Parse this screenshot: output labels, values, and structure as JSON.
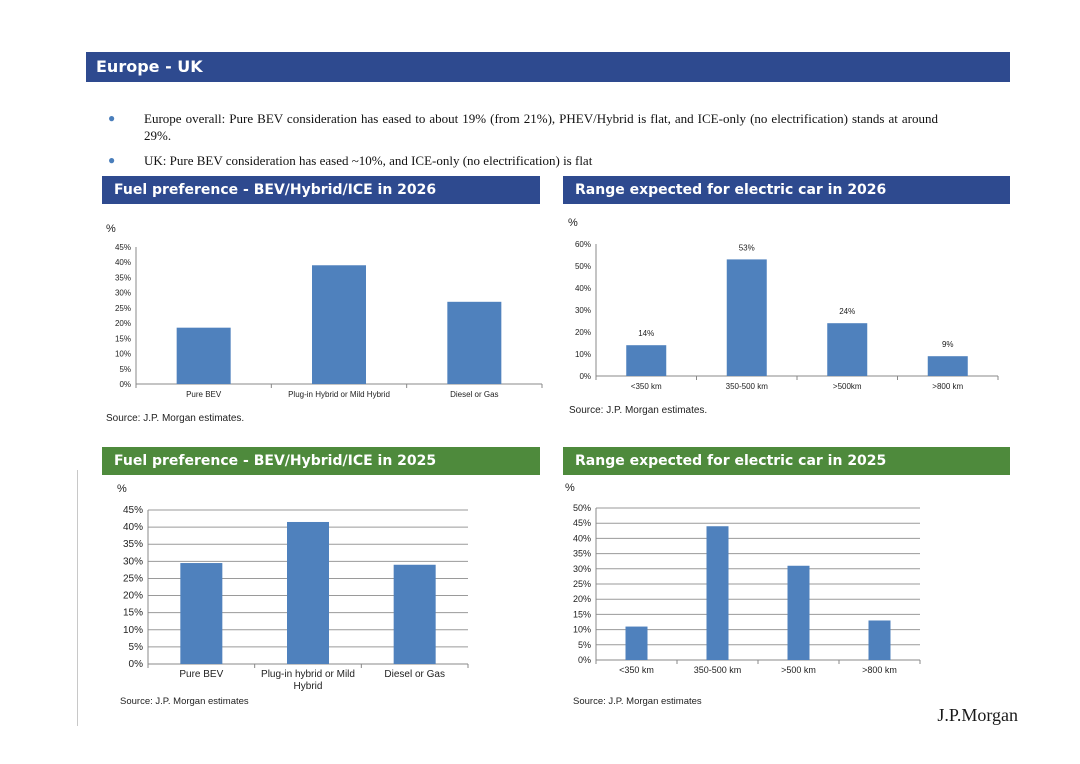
{
  "page": {
    "title": "Europe - UK",
    "bullets": [
      "Europe overall: Pure BEV consideration has eased to about 19% (from 21%), PHEV/Hybrid is flat, and ICE-only (no electrification) stands at around 29%.",
      "UK: Pure BEV consideration has eased ~10%, and ICE-only (no electrification) is flat"
    ],
    "logo": "J.P.Morgan"
  },
  "sections": [
    {
      "title": "Fuel preference - BEV/Hybrid/ICE in 2026",
      "source": "Source: J.P. Morgan estimates."
    },
    {
      "title": "Range expected for electric car in 2026",
      "source": "Source: J.P. Morgan estimates."
    },
    {
      "title": "Fuel preference - BEV/Hybrid/ICE in 2025",
      "source": "Source: J.P. Morgan estimates"
    },
    {
      "title": "Range expected for electric car in 2025",
      "source": "Source: J.P. Morgan estimates"
    }
  ],
  "colors": {
    "bar": "#4f81bd",
    "header_blue": "#2e4a8f",
    "header_green": "#4e8a3c"
  },
  "chart_data": [
    {
      "type": "bar",
      "title": "Fuel preference - BEV/Hybrid/ICE in 2026",
      "ylabel": "%",
      "categories": [
        "Pure BEV",
        "Plug-in Hybrid or Mild Hybrid",
        "Diesel or Gas"
      ],
      "values": [
        18.5,
        39,
        27
      ],
      "ylim": [
        0,
        45
      ],
      "ticks": [
        "0%",
        "5%",
        "10%",
        "15%",
        "20%",
        "25%",
        "30%",
        "35%",
        "40%",
        "45%"
      ],
      "grid": false,
      "data_labels": []
    },
    {
      "type": "bar",
      "title": "Range expected for electric car in 2026",
      "ylabel": "%",
      "categories": [
        "<350 km",
        "350-500 km",
        ">500km",
        ">800 km"
      ],
      "values": [
        14,
        53,
        24,
        9
      ],
      "ylim": [
        0,
        60
      ],
      "ticks": [
        "0%",
        "10%",
        "20%",
        "30%",
        "40%",
        "50%",
        "60%"
      ],
      "grid": false,
      "data_labels": [
        "14%",
        "53%",
        "24%",
        "9%"
      ]
    },
    {
      "type": "bar",
      "title": "Fuel preference - BEV/Hybrid/ICE in 2025",
      "ylabel": "%",
      "categories": [
        "Pure BEV",
        "Plug-in hybrid or Mild Hybrid",
        "Diesel or Gas"
      ],
      "values": [
        29.5,
        41.5,
        29
      ],
      "ylim": [
        0,
        45
      ],
      "ticks": [
        "0%",
        "5%",
        "10%",
        "15%",
        "20%",
        "25%",
        "30%",
        "35%",
        "40%",
        "45%"
      ],
      "grid": true,
      "data_labels": []
    },
    {
      "type": "bar",
      "title": "Range expected for electric car in 2025",
      "ylabel": "%",
      "categories": [
        "<350 km",
        "350-500 km",
        ">500 km",
        ">800 km"
      ],
      "values": [
        11,
        44,
        31,
        13
      ],
      "ylim": [
        0,
        50
      ],
      "ticks": [
        "0%",
        "5%",
        "10%",
        "15%",
        "20%",
        "25%",
        "30%",
        "35%",
        "40%",
        "45%",
        "50%"
      ],
      "grid": true,
      "data_labels": []
    }
  ]
}
